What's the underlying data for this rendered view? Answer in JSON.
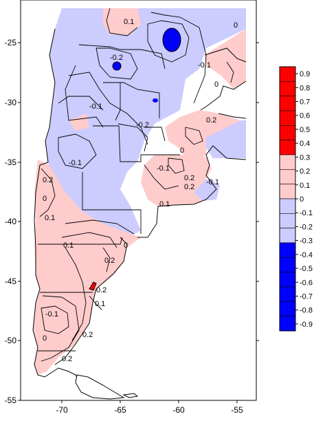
{
  "map": {
    "x_ticks": [
      "-70",
      "-65",
      "-60",
      "-55"
    ],
    "y_ticks": [
      "-25",
      "-30",
      "-35",
      "-40",
      "-45",
      "-50",
      "-55"
    ],
    "contour_labels": [
      "0",
      "0",
      "0",
      "0.1",
      "-0.1",
      "-0.1",
      "-0.1",
      "-0.2",
      "-0.2",
      "-0.1",
      "0.2",
      "0",
      "0.1",
      "-0.1",
      "0.2",
      "0.2",
      "0.2",
      "0.1",
      "0",
      "0.2",
      "0.1",
      "0",
      "0.2",
      "-0.1",
      "0.1",
      "0.2",
      "0.2"
    ]
  },
  "legend": {
    "labels": [
      "0.9",
      "0.8",
      "0.7",
      "0.6",
      "0.5",
      "0.4",
      "0.3",
      "0.2",
      "0.1",
      "0",
      "-0.1",
      "-0.2",
      "-0.3",
      "-0.4",
      "-0.5",
      "-0.6",
      "-0.7",
      "-0.8",
      "-0.9"
    ],
    "swatches": [
      "#ff0000",
      "#ff0000",
      "#ff0000",
      "#ff0000",
      "#ff0000",
      "#ff0000",
      "#ffcccc",
      "#ffcccc",
      "#ffcccc",
      "#ccccff",
      "#ccccff",
      "#ccccff",
      "#0000ff",
      "#0000ff",
      "#0000ff",
      "#0000ff",
      "#0000ff",
      "#0000ff"
    ]
  },
  "colors": {
    "positive_light": "#ffcccc",
    "negative_light": "#ccccff",
    "positive_strong": "#ff0000",
    "negative_strong": "#0000ff",
    "outline": "#000000",
    "background": "#ffffff"
  }
}
